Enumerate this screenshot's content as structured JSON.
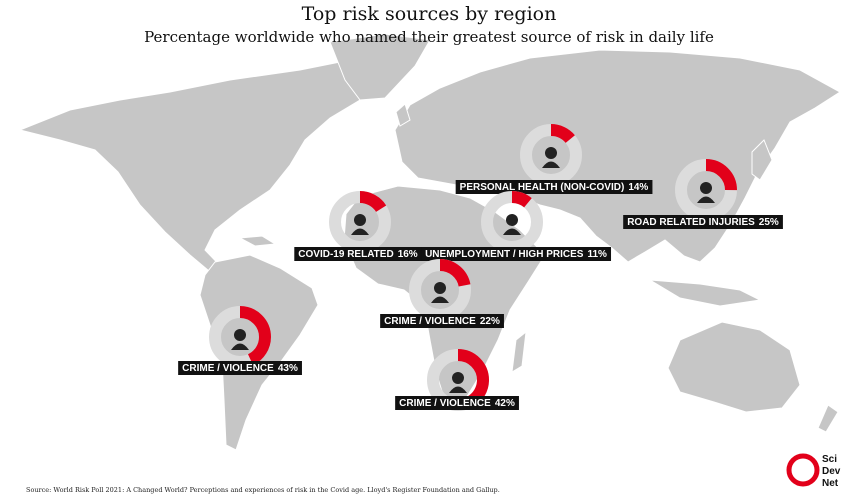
{
  "header": {
    "title": "Top risk sources by region",
    "subtitle": "Percentage worldwide who named their greatest source of risk in daily life"
  },
  "regions": [
    {
      "label": "PERSONAL HEALTH (NON-COVID)",
      "value": 14,
      "value_label": "14%"
    },
    {
      "label": "ROAD RELATED INJURIES",
      "value": 25,
      "value_label": "25%"
    },
    {
      "label": "COVID-19 RELATED",
      "value": 16,
      "value_label": "16%"
    },
    {
      "label": "UNEMPLOYMENT / HIGH PRICES",
      "value": 11,
      "value_label": "11%"
    },
    {
      "label": "CRIME / VIOLENCE",
      "value": 22,
      "value_label": "22%"
    },
    {
      "label": "CRIME / VIOLENCE",
      "value": 43,
      "value_label": "43%"
    },
    {
      "label": "CRIME / VIOLENCE",
      "value": 42,
      "value_label": "42%"
    }
  ],
  "source": "Source: World Risk Poll 2021: A Changed World? Perceptions and experiences of risk in the Covid age. Lloyd's Register Foundation and Gallup.",
  "logo": {
    "line1": "Sci",
    "line2": "Dev",
    "line3": "Net"
  }
}
